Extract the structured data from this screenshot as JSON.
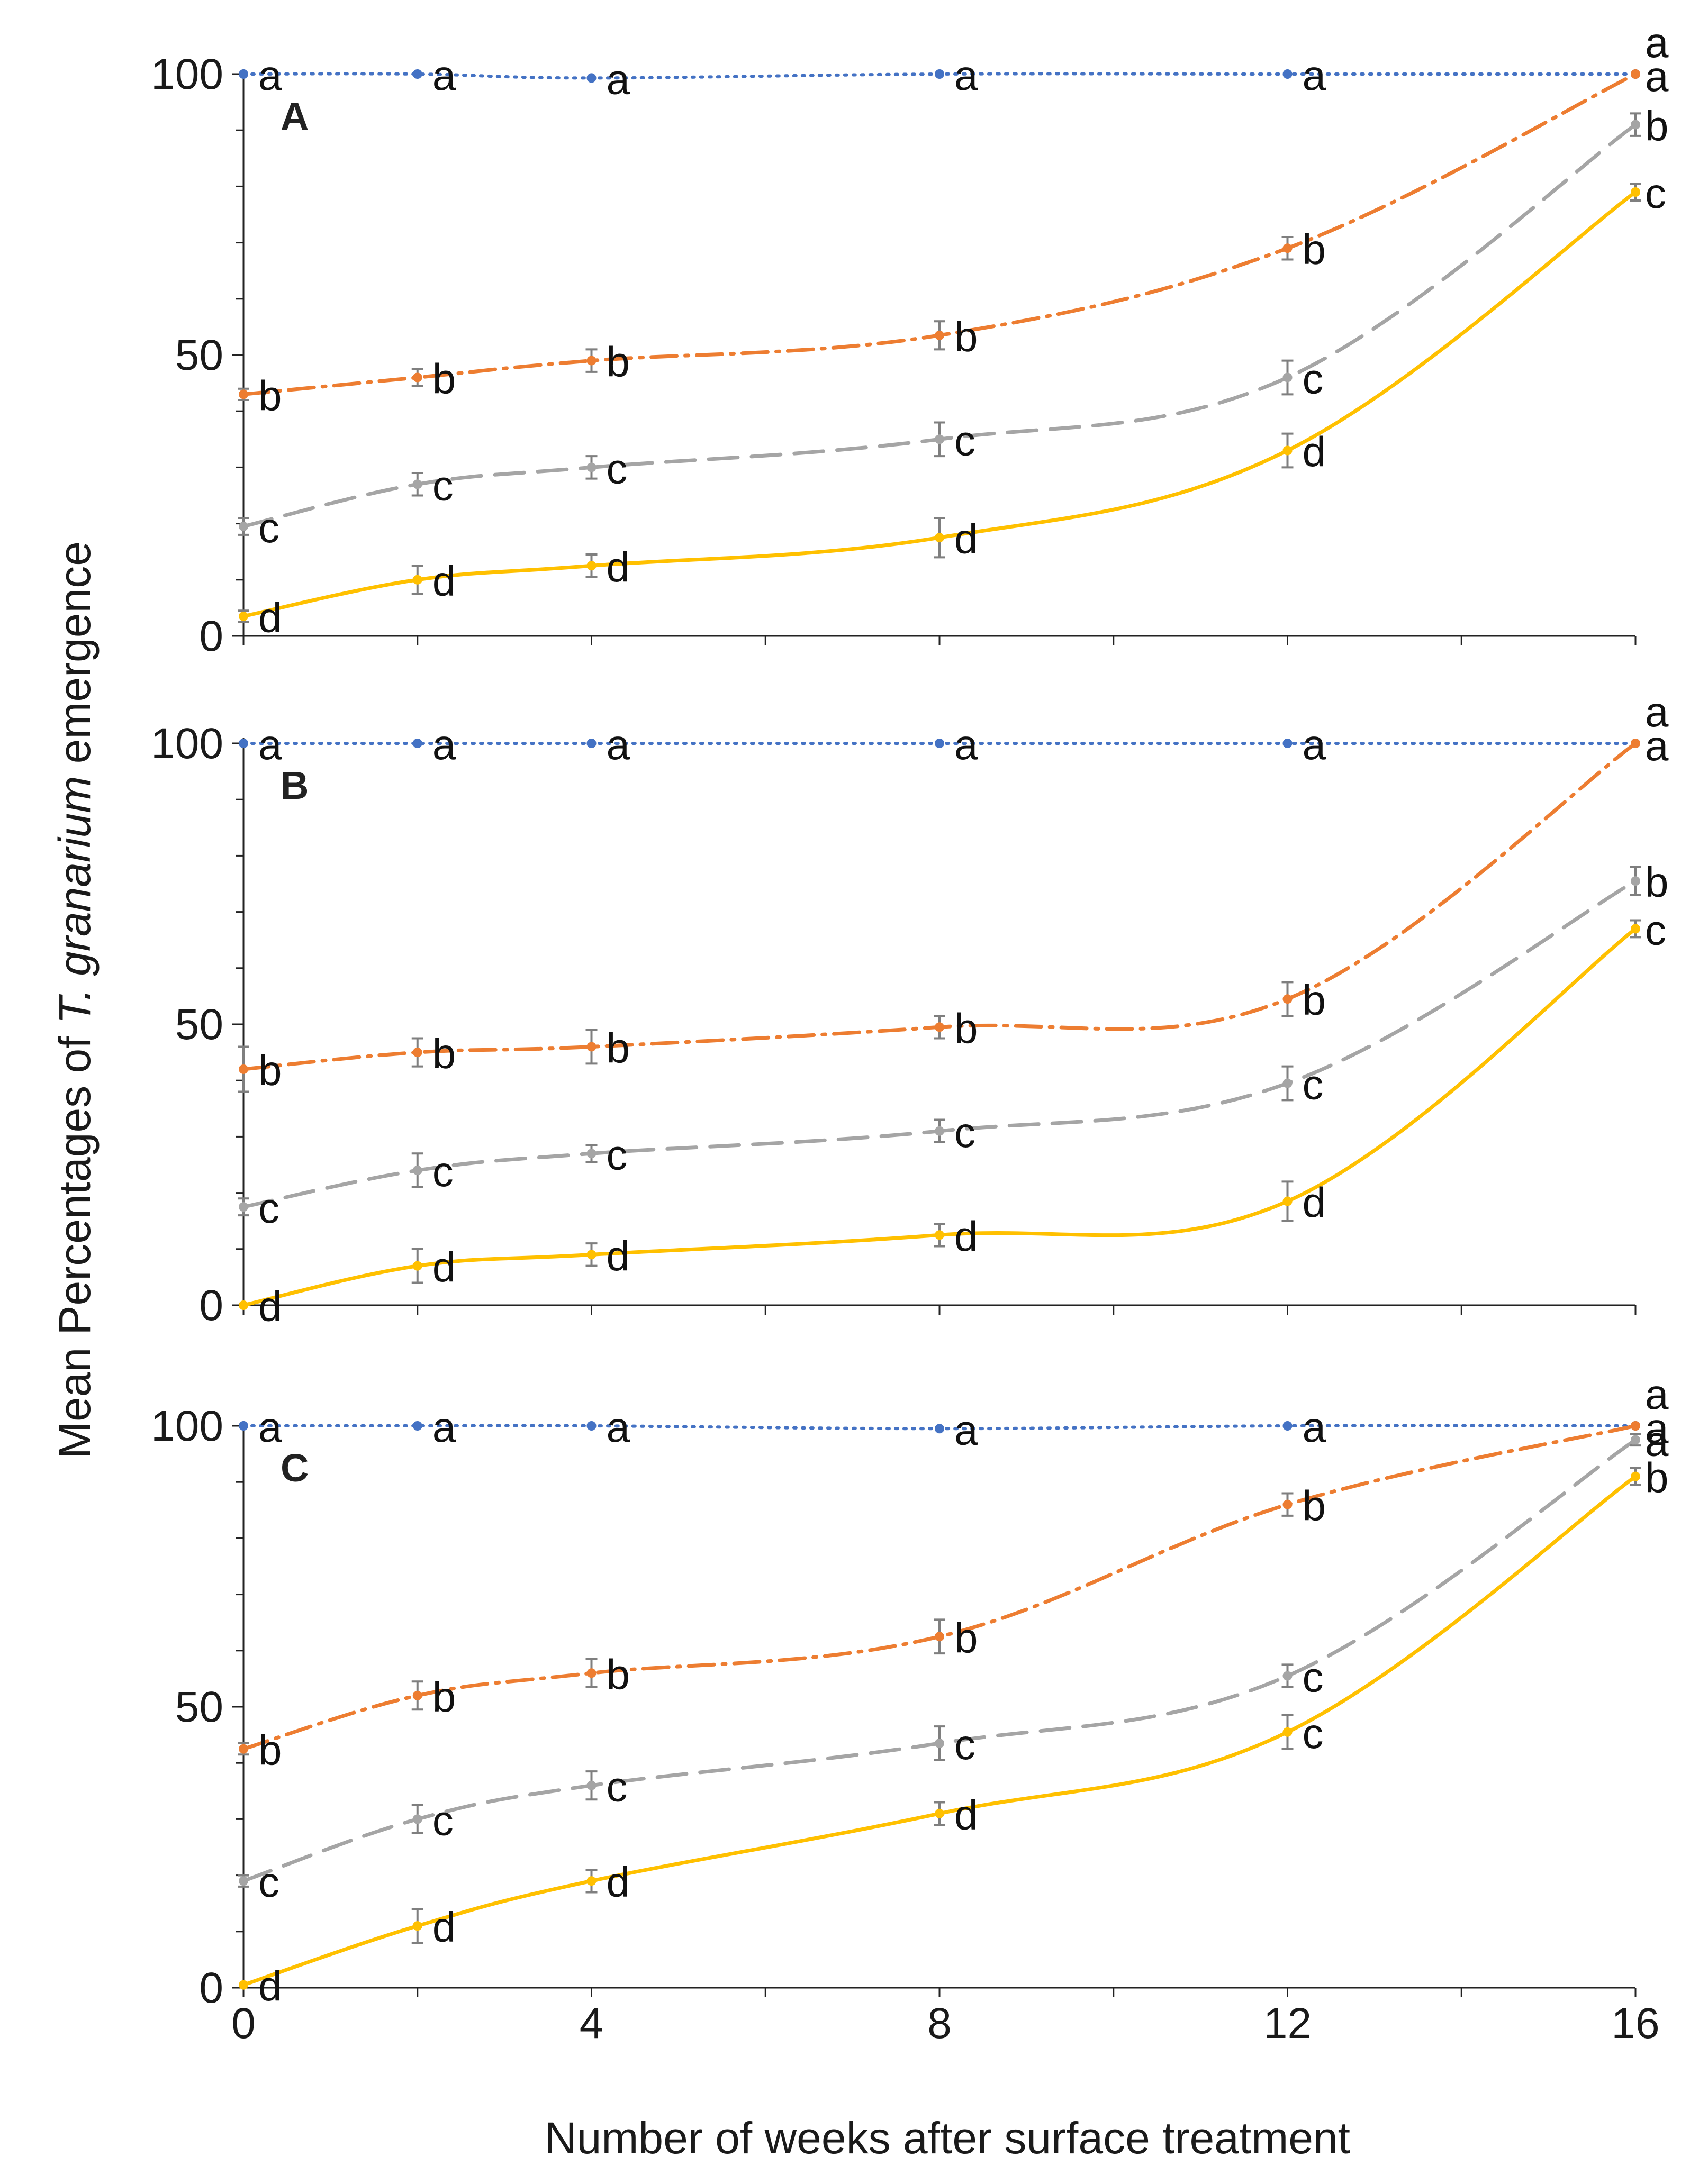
{
  "chart_data": {
    "type": "line",
    "xlabel": "Number of weeks after surface treatment",
    "ylabel_parts": [
      "Mean Percentages of ",
      "T. granarium",
      " emergence"
    ],
    "x_ticks": [
      "0",
      "4",
      "8",
      "12",
      "16"
    ],
    "y_ticks": [
      "0",
      "50",
      "100"
    ],
    "xlim": [
      0,
      16
    ],
    "ylim": [
      0,
      100
    ],
    "x": [
      0,
      2,
      4,
      8,
      12,
      16
    ],
    "colors": {
      "s1": "#4472c4",
      "s2": "#ed7d31",
      "s3": "#a5a5a5",
      "s4": "#ffc000"
    },
    "panels": [
      {
        "label": "A",
        "series": [
          {
            "key": "s1",
            "values": [
              100,
              100,
              99.3,
              100,
              100,
              100
            ],
            "errors": [
              0,
              0,
              0,
              0,
              0,
              0
            ],
            "letters": [
              "a",
              "a",
              "a",
              "a",
              "a",
              "a"
            ]
          },
          {
            "key": "s2",
            "values": [
              43,
              46,
              49,
              53.5,
              69,
              100
            ],
            "errors": [
              1,
              1.5,
              2,
              2.5,
              2,
              0
            ],
            "letters": [
              "b",
              "b",
              "b",
              "b",
              "b",
              "a"
            ]
          },
          {
            "key": "s3",
            "values": [
              19.5,
              27,
              30,
              35,
              46,
              91
            ],
            "errors": [
              1.5,
              2,
              2,
              3,
              3,
              2
            ],
            "letters": [
              "c",
              "c",
              "c",
              "c",
              "c",
              "b"
            ]
          },
          {
            "key": "s4",
            "values": [
              3.5,
              10,
              12.5,
              17.5,
              33,
              79
            ],
            "errors": [
              1,
              2.5,
              2,
              3.5,
              3,
              1.5
            ],
            "letters": [
              "d",
              "d",
              "d",
              "d",
              "d",
              "c"
            ]
          }
        ]
      },
      {
        "label": "B",
        "series": [
          {
            "key": "s1",
            "values": [
              100,
              100,
              100,
              100,
              100,
              100
            ],
            "errors": [
              0,
              0,
              0,
              0,
              0,
              0
            ],
            "letters": [
              "a",
              "a",
              "a",
              "a",
              "a",
              "a"
            ]
          },
          {
            "key": "s2",
            "values": [
              42,
              45,
              46,
              49.5,
              54.5,
              100
            ],
            "errors": [
              4,
              2.5,
              3,
              2,
              3,
              0
            ],
            "letters": [
              "b",
              "b",
              "b",
              "b",
              "b",
              "a"
            ]
          },
          {
            "key": "s3",
            "values": [
              17.5,
              24,
              27,
              31,
              39.5,
              75.5
            ],
            "errors": [
              1.5,
              3,
              1.5,
              2,
              3,
              2.5
            ],
            "letters": [
              "c",
              "c",
              "c",
              "c",
              "c",
              "b"
            ]
          },
          {
            "key": "s4",
            "values": [
              0,
              7,
              9,
              12.5,
              18.5,
              67
            ],
            "errors": [
              0,
              3,
              2,
              2,
              3.5,
              1.5
            ],
            "letters": [
              "d",
              "d",
              "d",
              "d",
              "d",
              "c"
            ]
          }
        ]
      },
      {
        "label": "C",
        "series": [
          {
            "key": "s1",
            "values": [
              100,
              100,
              100,
              99.5,
              100,
              100
            ],
            "errors": [
              0,
              0,
              0,
              0,
              0,
              0
            ],
            "letters": [
              "a",
              "a",
              "a",
              "a",
              "a",
              "a"
            ]
          },
          {
            "key": "s2",
            "values": [
              42.5,
              52,
              56,
              62.5,
              86,
              100
            ],
            "errors": [
              1,
              2.5,
              2.5,
              3,
              2,
              0
            ],
            "letters": [
              "b",
              "b",
              "b",
              "b",
              "b",
              "a"
            ]
          },
          {
            "key": "s3",
            "values": [
              19,
              30,
              36,
              43.5,
              55.5,
              97.5
            ],
            "errors": [
              1,
              2.5,
              2.5,
              3,
              2,
              1
            ],
            "letters": [
              "c",
              "c",
              "c",
              "c",
              "c",
              "a"
            ]
          },
          {
            "key": "s4",
            "values": [
              0.5,
              11,
              19,
              31,
              45.5,
              91
            ],
            "errors": [
              0,
              3,
              2,
              2,
              3,
              1.5
            ],
            "letters": [
              "d",
              "d",
              "d",
              "d",
              "c",
              "b"
            ]
          }
        ]
      }
    ]
  }
}
